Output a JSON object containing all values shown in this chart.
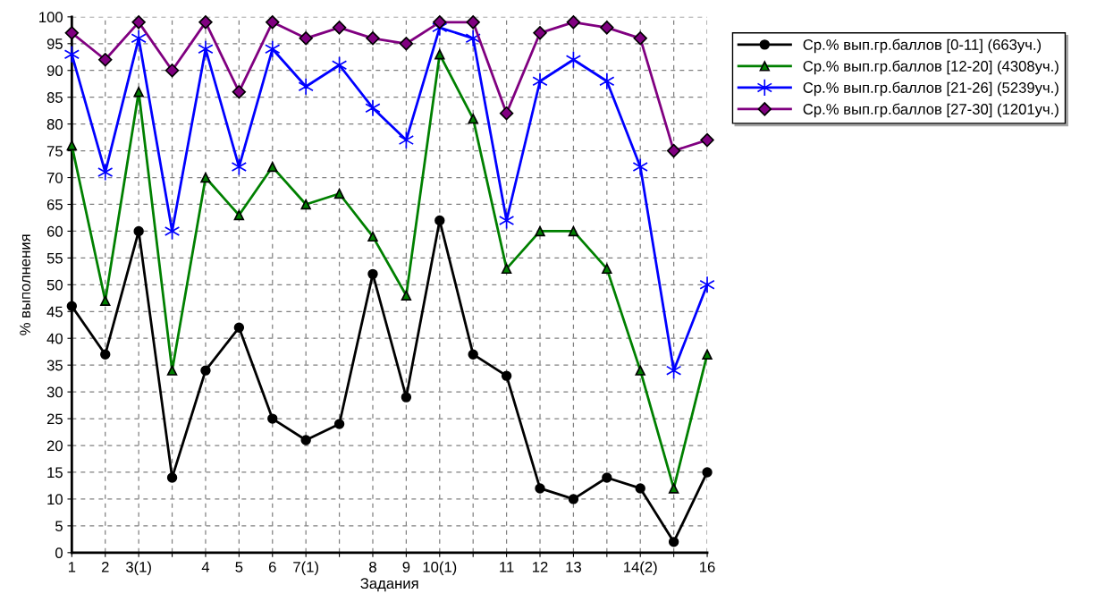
{
  "chart_data": {
    "type": "line",
    "xlabel": "Задания",
    "ylabel": "% выполнения",
    "categories": [
      "1",
      "2",
      "3(1)",
      null,
      "4",
      "5",
      "6",
      "7(1)",
      null,
      "8",
      "9",
      "10(1)",
      null,
      "11",
      "12",
      "13",
      null,
      "14(2)",
      null,
      "16"
    ],
    "series": [
      {
        "name": "Ср.% вып.гр.баллов [0-11] (663уч.)",
        "color": "#000000",
        "marker": "circle",
        "values": [
          46,
          37,
          60,
          14,
          34,
          42,
          25,
          21,
          24,
          52,
          29,
          62,
          37,
          33,
          12,
          10,
          14,
          12,
          2,
          15
        ]
      },
      {
        "name": "Ср.% вып.гр.баллов [12-20] (4308уч.)",
        "color": "#008000",
        "marker": "triangle",
        "values": [
          76,
          47,
          86,
          34,
          70,
          63,
          72,
          65,
          67,
          59,
          48,
          93,
          81,
          53,
          60,
          60,
          53,
          34,
          12,
          37
        ]
      },
      {
        "name": "Ср.% вып.гр.баллов [21-26] (5239уч.)",
        "color": "#0000ff",
        "marker": "cross",
        "values": [
          93,
          71,
          96,
          60,
          94,
          72,
          94,
          87,
          91,
          83,
          77,
          98,
          96,
          62,
          88,
          92,
          88,
          72,
          34,
          50
        ]
      },
      {
        "name": "Ср.% вып.гр.баллов [27-30] (1201уч.)",
        "color": "#800080",
        "marker": "diamond",
        "values": [
          97,
          92,
          99,
          90,
          99,
          86,
          99,
          96,
          98,
          96,
          95,
          99,
          99,
          82,
          97,
          99,
          98,
          96,
          75,
          77
        ]
      }
    ],
    "ylim": [
      0,
      100
    ],
    "yticks": [
      0,
      5,
      10,
      15,
      20,
      25,
      30,
      35,
      40,
      45,
      50,
      55,
      60,
      65,
      70,
      75,
      80,
      85,
      90,
      95,
      100
    ],
    "grid": true,
    "legend": "top right",
    "line_style": "solid"
  }
}
